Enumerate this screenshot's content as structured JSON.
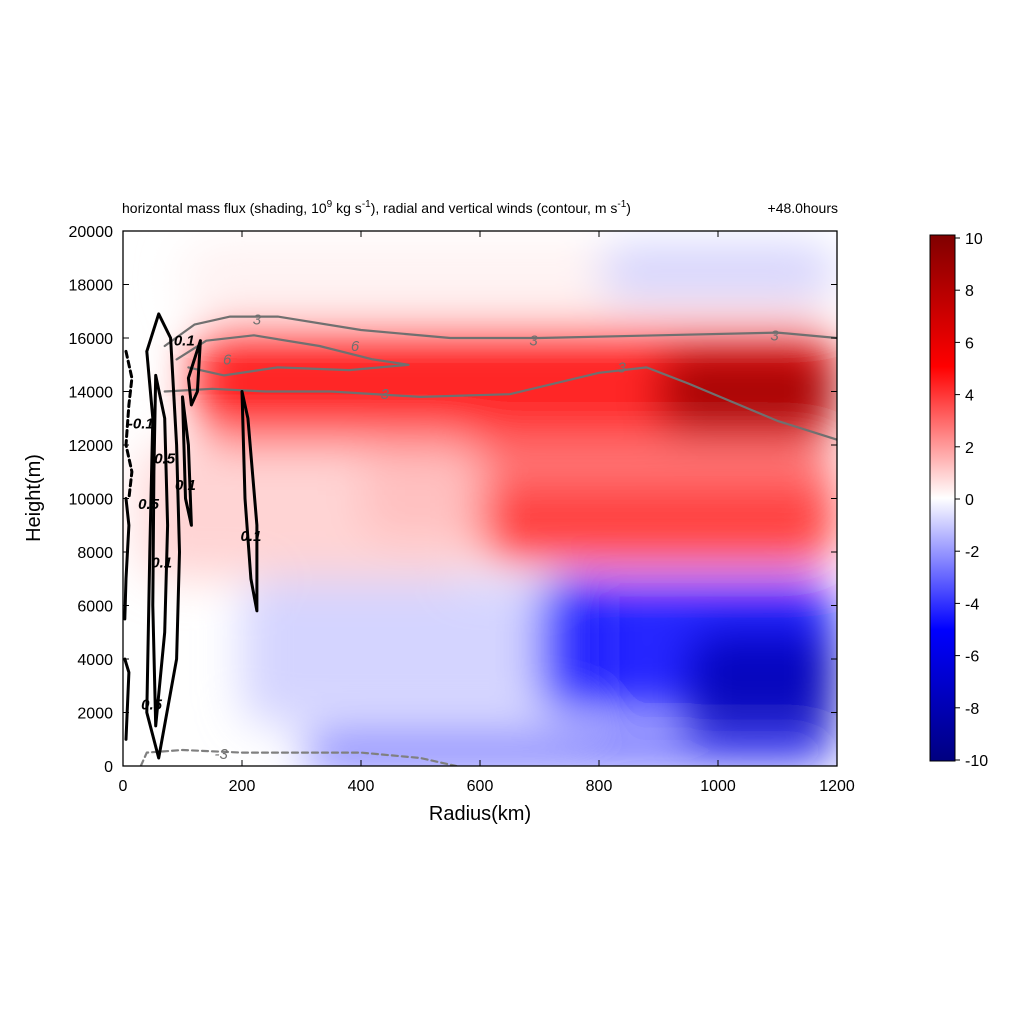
{
  "chart_data": {
    "type": "heatmap",
    "title": {
      "prefix": "horizontal mass flux (shading, 10",
      "sup1": "9",
      "mid": " kg s",
      "sup2": "-1",
      "mid2": "), radial and vertical winds (contour, m s",
      "sup3": "-1",
      "suffix": ")"
    },
    "time_label": "+48.0hours",
    "xlabel": "Radius(km)",
    "ylabel": "Height(m)",
    "xlim": [
      0,
      1200
    ],
    "ylim": [
      0,
      20000
    ],
    "x_ticks": [
      "0",
      "200",
      "400",
      "600",
      "800",
      "1000",
      "1200"
    ],
    "y_ticks": [
      "0",
      "2000",
      "4000",
      "6000",
      "8000",
      "10000",
      "12000",
      "14000",
      "16000",
      "18000",
      "20000"
    ],
    "colorbar": {
      "range": [
        -10,
        10
      ],
      "ticks": [
        "10",
        "8",
        "6",
        "4",
        "2",
        "0",
        "-2",
        "-4",
        "-6",
        "-8",
        "-10"
      ],
      "colors": [
        "#000080",
        "#0000ff",
        "#ffffff",
        "#ff0000",
        "#800000"
      ]
    },
    "shading_regions": [
      {
        "x": [
          120,
          1200
        ],
        "y": [
          12000,
          16500
        ],
        "value": 5
      },
      {
        "x": [
          900,
          1200
        ],
        "y": [
          12500,
          15500
        ],
        "value": 9
      },
      {
        "x": [
          400,
          1200
        ],
        "y": [
          8500,
          12000
        ],
        "value": 3
      },
      {
        "x": [
          600,
          1200
        ],
        "y": [
          7500,
          10500
        ],
        "value": 4
      },
      {
        "x": [
          30,
          600
        ],
        "y": [
          7000,
          12000
        ],
        "value": 1
      },
      {
        "x": [
          100,
          1200
        ],
        "y": [
          17000,
          19500
        ],
        "value": 0.3
      },
      {
        "x": [
          800,
          1200
        ],
        "y": [
          17500,
          19500
        ],
        "value": -1
      },
      {
        "x": [
          200,
          800
        ],
        "y": [
          1500,
          7000
        ],
        "value": -1
      },
      {
        "x": [
          700,
          1200
        ],
        "y": [
          2000,
          7000
        ],
        "value": -5
      },
      {
        "x": [
          950,
          1200
        ],
        "y": [
          500,
          5000
        ],
        "value": -8
      },
      {
        "x": [
          300,
          1200
        ],
        "y": [
          0,
          1200
        ],
        "value": -4
      }
    ],
    "contours": [
      {
        "name": "radial wind",
        "level": "3",
        "style": "solid",
        "color": "#707070",
        "points": [
          [
            70,
            15700
          ],
          [
            120,
            16500
          ],
          [
            180,
            16800
          ],
          [
            260,
            16800
          ],
          [
            400,
            16300
          ],
          [
            550,
            16000
          ],
          [
            700,
            16000
          ],
          [
            900,
            16100
          ],
          [
            1100,
            16200
          ],
          [
            1200,
            16000
          ]
        ]
      },
      {
        "name": "radial wind",
        "level": "6",
        "style": "solid",
        "color": "#707070",
        "points": [
          [
            90,
            15200
          ],
          [
            140,
            15900
          ],
          [
            220,
            16100
          ],
          [
            330,
            15700
          ],
          [
            420,
            15200
          ],
          [
            480,
            15000
          ],
          [
            380,
            14800
          ],
          [
            260,
            14900
          ],
          [
            170,
            14600
          ],
          [
            110,
            14900
          ]
        ]
      },
      {
        "name": "radial wind",
        "level": "3",
        "style": "solid",
        "color": "#707070",
        "points": [
          [
            70,
            14000
          ],
          [
            150,
            14100
          ],
          [
            240,
            14000
          ],
          [
            350,
            14000
          ],
          [
            500,
            13800
          ],
          [
            650,
            13900
          ],
          [
            800,
            14700
          ],
          [
            880,
            14900
          ],
          [
            950,
            14300
          ],
          [
            1100,
            12900
          ],
          [
            1200,
            12200
          ]
        ]
      },
      {
        "name": "radial wind",
        "level": "-3",
        "style": "dashed",
        "color": "#808080",
        "points": [
          [
            30,
            0
          ],
          [
            40,
            500
          ],
          [
            100,
            600
          ],
          [
            200,
            500
          ],
          [
            300,
            500
          ],
          [
            400,
            500
          ],
          [
            500,
            300
          ],
          [
            560,
            0
          ]
        ]
      },
      {
        "name": "vertical wind",
        "level": "0.1",
        "style": "solid",
        "color": "#000000",
        "points": [
          [
            40,
            15500
          ],
          [
            60,
            16900
          ],
          [
            80,
            16000
          ],
          [
            90,
            12000
          ],
          [
            95,
            8000
          ],
          [
            90,
            4000
          ],
          [
            60,
            300
          ],
          [
            40,
            2000
          ],
          [
            45,
            8000
          ],
          [
            50,
            13000
          ],
          [
            40,
            15500
          ]
        ]
      },
      {
        "name": "vertical wind",
        "level": "0.5",
        "style": "solid",
        "color": "#000000",
        "points": [
          [
            55,
            14600
          ],
          [
            70,
            13000
          ],
          [
            75,
            9000
          ],
          [
            70,
            5000
          ],
          [
            55,
            1500
          ],
          [
            50,
            6000
          ],
          [
            52,
            11000
          ],
          [
            55,
            14600
          ]
        ]
      },
      {
        "name": "vertical wind",
        "level": "0.1",
        "style": "solid",
        "color": "#000000",
        "points": [
          [
            100,
            13800
          ],
          [
            110,
            12000
          ],
          [
            115,
            9000
          ],
          [
            105,
            10000
          ],
          [
            100,
            13800
          ]
        ]
      },
      {
        "name": "vertical wind",
        "level": "0.1",
        "style": "solid",
        "color": "#000000",
        "points": [
          [
            130,
            15900
          ],
          [
            125,
            14000
          ],
          [
            115,
            13500
          ],
          [
            110,
            14500
          ],
          [
            130,
            15900
          ]
        ]
      },
      {
        "name": "vertical wind",
        "level": "0.1",
        "style": "solid",
        "color": "#000000",
        "points": [
          [
            200,
            14000
          ],
          [
            210,
            13000
          ],
          [
            225,
            9000
          ],
          [
            225,
            5800
          ],
          [
            215,
            7000
          ],
          [
            205,
            10000
          ],
          [
            200,
            14000
          ]
        ]
      },
      {
        "name": "vertical wind",
        "level": "-0.1",
        "style": "dashed",
        "color": "#000000",
        "points": [
          [
            5,
            15500
          ],
          [
            15,
            14500
          ],
          [
            10,
            13500
          ],
          [
            5,
            12000
          ],
          [
            15,
            11000
          ],
          [
            10,
            10000
          ]
        ]
      },
      {
        "name": "vertical wind",
        "level": "0.1",
        "style": "solid",
        "color": "#000000",
        "points": [
          [
            5,
            10000
          ],
          [
            10,
            9000
          ],
          [
            5,
            7000
          ],
          [
            3,
            5500
          ]
        ]
      },
      {
        "name": "vertical wind",
        "level": "0.1",
        "style": "solid",
        "color": "#000000",
        "points": [
          [
            3,
            4000
          ],
          [
            10,
            3500
          ],
          [
            5,
            1000
          ]
        ]
      }
    ],
    "contour_labels": [
      {
        "text": "3",
        "x": 225,
        "y": 16700,
        "color": "#707070"
      },
      {
        "text": "6",
        "x": 390,
        "y": 15700,
        "color": "#707070"
      },
      {
        "text": "6",
        "x": 175,
        "y": 15200,
        "color": "#707070"
      },
      {
        "text": "3",
        "x": 690,
        "y": 15900,
        "color": "#707070"
      },
      {
        "text": "3",
        "x": 1095,
        "y": 16100,
        "color": "#707070"
      },
      {
        "text": "3",
        "x": 440,
        "y": 13900,
        "color": "#707070"
      },
      {
        "text": "3",
        "x": 838,
        "y": 14900,
        "color": "#707070"
      },
      {
        "text": "-3",
        "x": 165,
        "y": 450,
        "color": "#707070"
      },
      {
        "text": "0.1",
        "x": 103,
        "y": 15900,
        "color": "#000000"
      },
      {
        "text": "0.5",
        "x": 70,
        "y": 11500,
        "color": "#000000"
      },
      {
        "text": "0.1",
        "x": 105,
        "y": 10500,
        "color": "#000000"
      },
      {
        "text": "0.1",
        "x": 215,
        "y": 8600,
        "color": "#000000"
      },
      {
        "text": "0.5",
        "x": 43,
        "y": 9800,
        "color": "#000000"
      },
      {
        "text": "-0.1",
        "x": 30,
        "y": 12800,
        "color": "#000000"
      },
      {
        "text": "0.1",
        "x": 65,
        "y": 7600,
        "color": "#000000"
      },
      {
        "text": "0.5",
        "x": 48,
        "y": 2300,
        "color": "#000000"
      }
    ]
  }
}
